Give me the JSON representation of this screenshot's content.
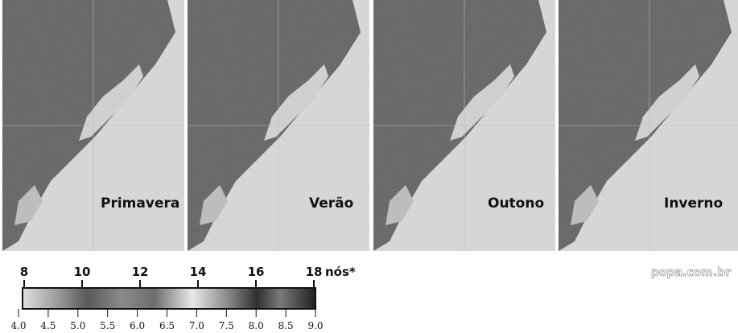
{
  "panels": [
    {
      "label": "Primavera"
    },
    {
      "label": "Verão"
    },
    {
      "label": "Outono"
    },
    {
      "label": "Inverno"
    }
  ],
  "scale": {
    "top_ticks": [
      "8",
      "10",
      "12",
      "14",
      "16",
      "18"
    ],
    "unit": "nós*",
    "bottom_ticks": [
      "4.0",
      "4.5",
      "5.0",
      "5.5",
      "6.0",
      "6.5",
      "7.0",
      "7.5",
      "8.0",
      "8.5",
      "9.0"
    ]
  },
  "watermark": "popa.com.br"
}
